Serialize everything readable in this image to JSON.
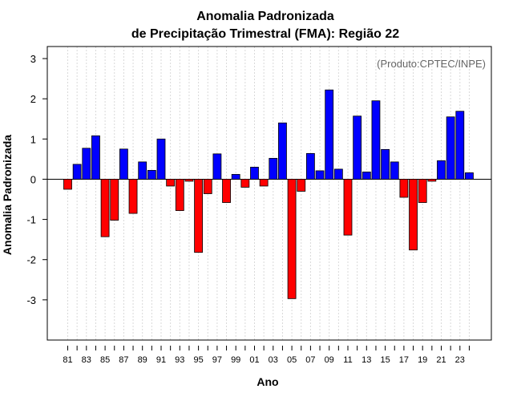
{
  "chart_data": {
    "type": "bar",
    "title": "Anomalia Padronizada",
    "subtitle": "de Precipitação Trimestral (FMA): Região 22",
    "xlabel": "Ano",
    "ylabel": "Anomalia Padronizada",
    "annotation": "(Produto:CPTEC/INPE)",
    "ylim": [
      -4,
      3.3
    ],
    "yticks": [
      -3,
      -2,
      -1,
      0,
      1,
      2,
      3
    ],
    "ytick_labels": [
      "-3",
      "-2",
      "-1",
      "0",
      "1",
      "2",
      "3"
    ],
    "grid": true,
    "categories": [
      "1981",
      "1982",
      "1983",
      "1984",
      "1985",
      "1986",
      "1987",
      "1988",
      "1989",
      "1990",
      "1991",
      "1992",
      "1993",
      "1994",
      "1995",
      "1996",
      "1997",
      "1998",
      "1999",
      "2000",
      "2001",
      "2002",
      "2003",
      "2004",
      "2005",
      "2006",
      "2007",
      "2008",
      "2009",
      "2010",
      "2011",
      "2012",
      "2013",
      "2014",
      "2015",
      "2016",
      "2017",
      "2018",
      "2019",
      "2020",
      "2021",
      "2022",
      "2023",
      "2024"
    ],
    "xtick_labels": [
      "81",
      "",
      "83",
      "",
      "85",
      "",
      "87",
      "",
      "89",
      "",
      "91",
      "",
      "93",
      "",
      "95",
      "",
      "97",
      "",
      "99",
      "",
      "01",
      "",
      "03",
      "",
      "05",
      "",
      "07",
      "",
      "09",
      "",
      "11",
      "",
      "13",
      "",
      "15",
      "",
      "17",
      "",
      "19",
      "",
      "21",
      "",
      "23",
      ""
    ],
    "values": [
      -0.25,
      0.37,
      0.77,
      1.08,
      -1.43,
      -1.02,
      0.75,
      -0.85,
      0.43,
      0.22,
      1.0,
      -0.17,
      -0.78,
      -0.05,
      -1.82,
      -0.36,
      0.63,
      -0.58,
      0.12,
      -0.2,
      0.3,
      -0.17,
      0.52,
      1.4,
      -2.97,
      -0.3,
      0.64,
      0.21,
      2.22,
      0.25,
      -1.39,
      1.57,
      0.18,
      1.95,
      0.74,
      0.43,
      -0.45,
      -1.76,
      -0.58,
      -0.05,
      0.46,
      1.55,
      1.69,
      0.16
    ],
    "colors": {
      "positive": "#0000ff",
      "negative": "#ff0000",
      "edge": "#000000",
      "grid": "#d9d9d9"
    }
  }
}
